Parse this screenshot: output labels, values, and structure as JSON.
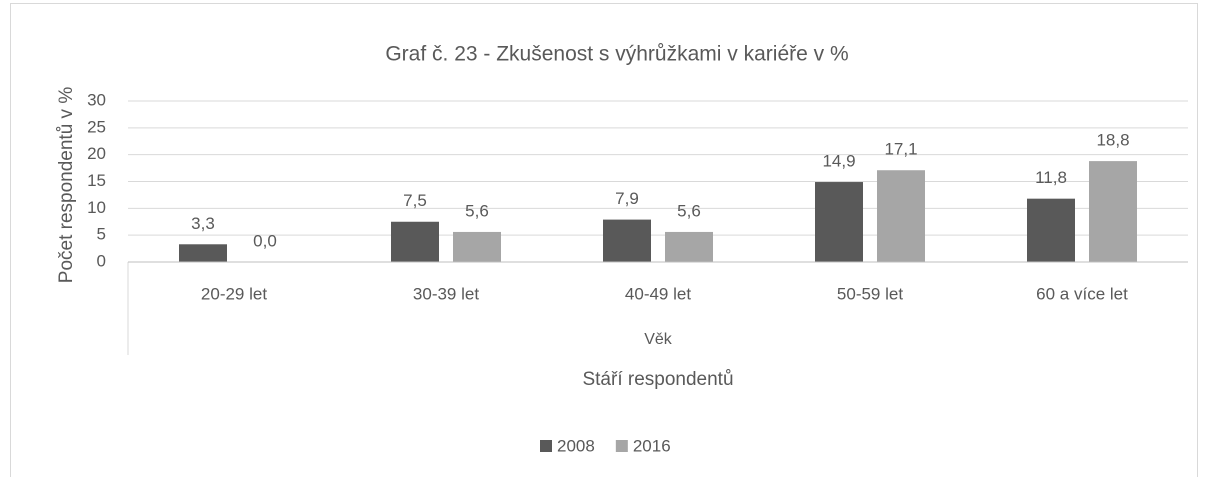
{
  "chart_data": {
    "type": "bar",
    "title": "Graf č. 23 - Zkušenost s výhrůžkami v kariéře v %",
    "y_label": "Počet respondentů v %",
    "x_group_label": "Věk",
    "x_label": "Stáří respondentů",
    "categories": [
      "20-29 let",
      "30-39 let",
      "40-49 let",
      "50-59 let",
      "60 a více let"
    ],
    "series": [
      {
        "name": "2008",
        "color": "#595959",
        "values": [
          3.3,
          7.5,
          7.9,
          14.9,
          11.8
        ],
        "value_labels": [
          "3,3",
          "7,5",
          "7,9",
          "14,9",
          "11,8"
        ]
      },
      {
        "name": "2016",
        "color": "#a6a6a6",
        "values": [
          0.0,
          5.6,
          5.6,
          17.1,
          18.8
        ],
        "value_labels": [
          "0,0",
          "5,6",
          "5,6",
          "17,1",
          "18,8"
        ]
      }
    ],
    "ylim": [
      0,
      30
    ],
    "yticks": [
      0,
      5,
      10,
      15,
      20,
      25,
      30
    ],
    "grid": true,
    "legend": "bottom"
  }
}
